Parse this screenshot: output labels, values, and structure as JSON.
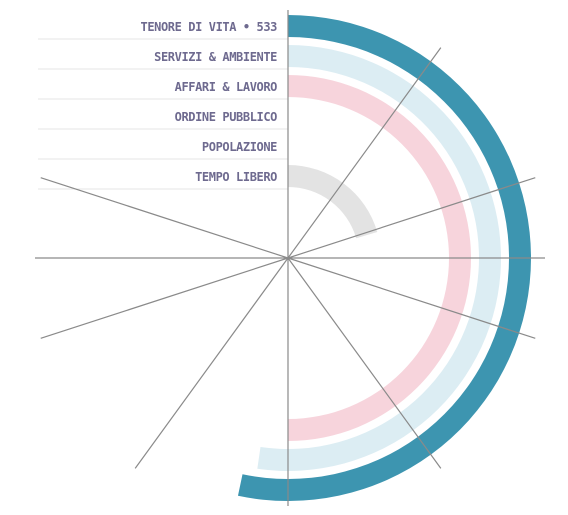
{
  "chart_data": {
    "type": "radial-bar",
    "title": "",
    "scale_max": 1000,
    "categories": [
      "TENORE DI VITA • 533",
      "SERVIZI & AMBIENTE",
      "AFFARI & LAVORO",
      "ORDINE PUBBLICO",
      "POPOLAZIONE",
      "TEMPO LIBERO"
    ],
    "values": [
      533,
      523,
      500,
      0,
      0,
      205
    ],
    "colors": [
      "#3d95b0",
      "#dcedf3",
      "#f7d4dc",
      "#ffffff",
      "#ffffff",
      "#e3e3e3"
    ],
    "label_color": "#6e6a8f",
    "axis_color": "#8a8a8a"
  }
}
